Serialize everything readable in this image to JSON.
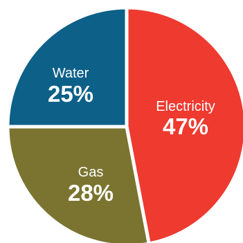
{
  "chart_data": {
    "type": "pie",
    "start_angle_deg": 0,
    "direction": "clockwise",
    "slices": [
      {
        "name": "Electricity",
        "value": 47,
        "label": "47%",
        "color": "#ee3a2f"
      },
      {
        "name": "Gas",
        "value": 28,
        "label": "28%",
        "color": "#7a7430"
      },
      {
        "name": "Water",
        "value": 25,
        "label": "25%",
        "color": "#0d6088"
      }
    ],
    "legend": "none",
    "title": ""
  }
}
